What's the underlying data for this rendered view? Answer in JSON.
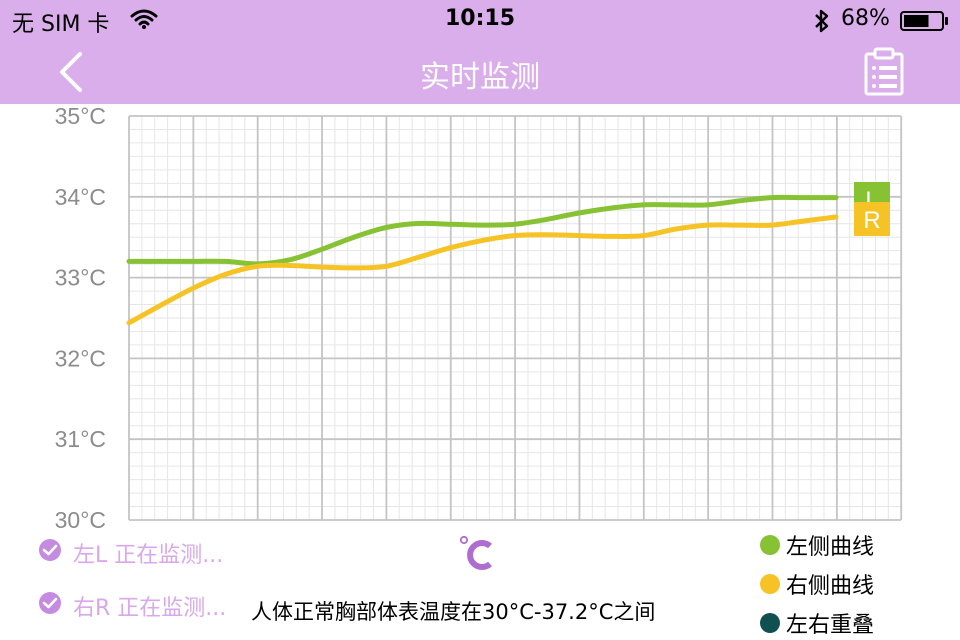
{
  "status_bar": {
    "carrier": "无 SIM 卡",
    "time": "10:15",
    "battery_percent": "68%",
    "battery_level": 0.68,
    "icons": [
      "wifi-icon",
      "bluetooth-icon",
      "battery-icon"
    ]
  },
  "nav": {
    "title": "实时监测",
    "back_icon": "chevron-left-icon",
    "right_icon": "clipboard-report-icon",
    "bar_color": "#d9aeea"
  },
  "chart_data": {
    "type": "line",
    "y_ticks": [
      "35°C",
      "34°C",
      "33°C",
      "32°C",
      "31°C",
      "30°C"
    ],
    "ylim": [
      30,
      35
    ],
    "grid": true,
    "x_count": 23,
    "series": [
      {
        "name": "L",
        "color": "#86c233",
        "values": [
          33.2,
          33.2,
          33.2,
          33.2,
          33.17,
          33.22,
          33.35,
          33.5,
          33.62,
          33.67,
          33.66,
          33.65,
          33.66,
          33.72,
          33.8,
          33.86,
          33.9,
          33.9,
          33.9,
          33.95,
          33.99,
          33.99,
          33.99
        ]
      },
      {
        "name": "R",
        "color": "#f6c326",
        "values": [
          32.44,
          32.66,
          32.87,
          33.04,
          33.14,
          33.15,
          33.13,
          33.12,
          33.14,
          33.25,
          33.37,
          33.46,
          33.52,
          33.53,
          33.52,
          33.51,
          33.52,
          33.6,
          33.65,
          33.65,
          33.65,
          33.7,
          33.75
        ]
      }
    ]
  },
  "legend_left": [
    {
      "label": "左L  正在监测...",
      "icon": "check-circle-icon"
    },
    {
      "label": "右R  正在监测...",
      "icon": "check-circle-icon"
    }
  ],
  "center_icon": "celsius-icon",
  "hint": "人体正常胸部体表温度在30°C-37.2°C之间",
  "legend_right": [
    {
      "label": "左侧曲线",
      "color": "#86c233"
    },
    {
      "label": "右侧曲线",
      "color": "#f6c326"
    },
    {
      "label": "左右重叠",
      "color": "#115050"
    }
  ]
}
